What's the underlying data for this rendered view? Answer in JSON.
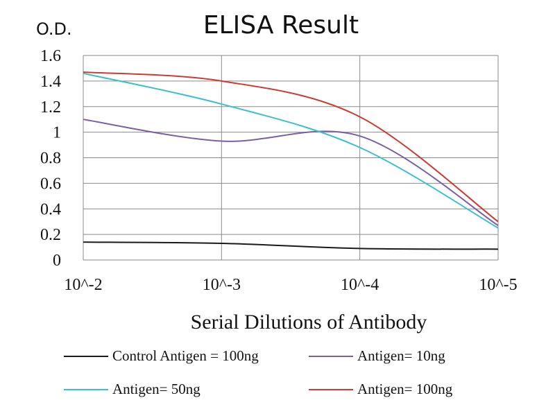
{
  "chart_data": {
    "type": "line",
    "title": "ELISA Result",
    "ylabel": "O.D.",
    "xlabel": "Serial  Dilutions  of Antibody",
    "x": [
      "10^-2",
      "10^-3",
      "10^-4",
      "10^-5"
    ],
    "ylim": [
      0,
      1.6
    ],
    "yticks": [
      "0",
      "0.2",
      "0.4",
      "0.6",
      "0.8",
      "1",
      "1.2",
      "1.4",
      "1.6"
    ],
    "grid": true,
    "legend_position": "bottom",
    "series": [
      {
        "name": "Control Antigen = 100ng",
        "color": "#1a1a1a",
        "values": [
          0.14,
          0.13,
          0.09,
          0.085
        ]
      },
      {
        "name": "Antigen= 10ng",
        "color": "#7a5ea8",
        "values": [
          1.1,
          0.93,
          0.97,
          0.27
        ]
      },
      {
        "name": "Antigen= 50ng",
        "color": "#3bbfd0",
        "values": [
          1.46,
          1.22,
          0.88,
          0.25
        ]
      },
      {
        "name": "Antigen= 100ng",
        "color": "#cc3a30",
        "values": [
          1.47,
          1.4,
          1.12,
          0.3
        ]
      }
    ]
  }
}
